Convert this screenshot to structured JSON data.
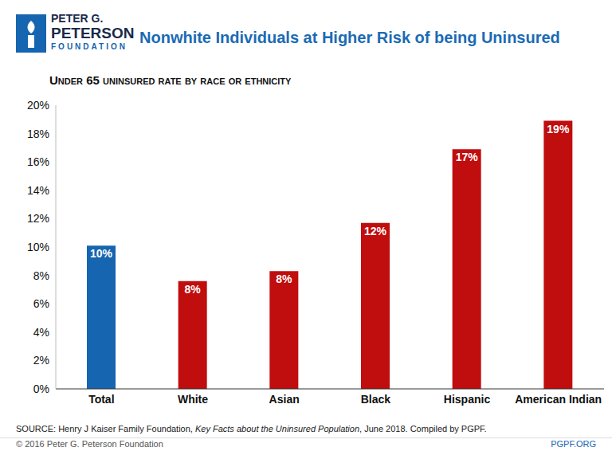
{
  "chart_data": {
    "type": "bar",
    "title": "Nonwhite Individuals at Higher Risk of being Uninsured",
    "subtitle": "Under 65 uninsured rate by race or ethnicity",
    "categories": [
      "Total",
      "White",
      "Asian",
      "Black",
      "Hispanic",
      "American Indian"
    ],
    "values": [
      10.1,
      7.6,
      8.3,
      11.7,
      16.9,
      18.9
    ],
    "value_labels": [
      "10%",
      "8%",
      "8%",
      "12%",
      "17%",
      "19%"
    ],
    "colors": [
      "#1565b0",
      "#c00d0d",
      "#c00d0d",
      "#c00d0d",
      "#c00d0d",
      "#c00d0d"
    ],
    "ylim": [
      0,
      20
    ],
    "yticks": [
      {
        "value": 0,
        "label": "0%"
      },
      {
        "value": 2,
        "label": "2%"
      },
      {
        "value": 4,
        "label": "4%"
      },
      {
        "value": 6,
        "label": "6%"
      },
      {
        "value": 8,
        "label": "8%"
      },
      {
        "value": 10,
        "label": "10%"
      },
      {
        "value": 12,
        "label": "12%"
      },
      {
        "value": 14,
        "label": "14%"
      },
      {
        "value": 16,
        "label": "16%"
      },
      {
        "value": 18,
        "label": "18%"
      },
      {
        "value": 20,
        "label": "20%"
      }
    ],
    "grid": false,
    "data_labels": true,
    "logo": [
      "PETER G.",
      "PETERSON",
      "FOUNDATION"
    ],
    "source": [
      "SOURCE: Henry J Kaiser Family Foundation, ",
      "Key Facts about the Uninsured Population",
      ", June 2018. Compiled by PGPF."
    ],
    "copyright": "© 2016 Peter G. Peterson Foundation",
    "website": "PGPF.ORG"
  }
}
